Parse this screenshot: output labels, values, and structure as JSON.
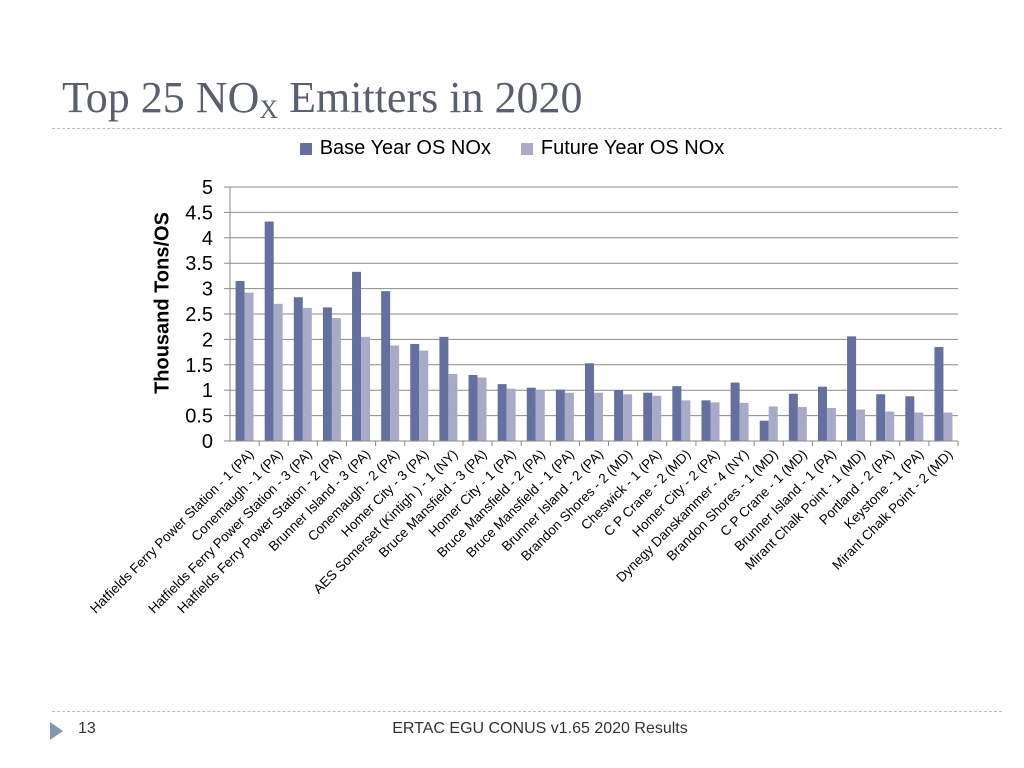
{
  "slide": {
    "title_main": "Top 25 NO",
    "title_sub": "X",
    "title_rest": " Emitters in 2020",
    "page_number": "13",
    "footer": "ERTAC EGU CONUS v1.65 2020 Results"
  },
  "colors": {
    "base": "#6470a0",
    "future": "#a7abc8",
    "grid": "#8a8a8a",
    "divider": "#b8bfcc"
  },
  "chart_data": {
    "type": "bar",
    "title": "",
    "xlabel": "",
    "ylabel": "Thousand Tons/OS",
    "ylim": [
      0,
      5
    ],
    "yticks": [
      "0",
      "0.5",
      "1",
      "1.5",
      "2",
      "2.5",
      "3",
      "3.5",
      "4",
      "4.5",
      "5"
    ],
    "grid": true,
    "legend_position": "top",
    "categories": [
      "Hatfields Ferry Power Station - 1 (PA)",
      "Conemaugh - 1 (PA)",
      "Hatfields Ferry Power Station - 3 (PA)",
      "Hatfields Ferry Power Station - 2 (PA)",
      "Brunner Island - 3 (PA)",
      "Conemaugh - 2 (PA)",
      "Homer City - 3 (PA)",
      "AES Somerset (Kintigh ) - 1 (NY)",
      "Bruce Mansfield - 3 (PA)",
      "Homer City - 1 (PA)",
      "Bruce Mansfield - 2 (PA)",
      "Bruce Mansfield - 1 (PA)",
      "Brunner Island - 2 (PA)",
      "Brandon Shores - 2 (MD)",
      "Cheswick - 1 (PA)",
      "C P Crane - 2 (MD)",
      "Homer City - 2 (PA)",
      "Dynegy Danskammer - 4 (NY)",
      "Brandon Shores - 1 (MD)",
      "C P Crane - 1 (MD)",
      "Brunner Island - 1 (PA)",
      "Mirant Chalk Point - 1 (MD)",
      "Portland - 2 (PA)",
      "Keystone - 1 (PA)",
      "Mirant Chalk Point - 2 (MD)"
    ],
    "series": [
      {
        "name": "Base Year OS NOx",
        "values": [
          3.15,
          4.32,
          2.83,
          2.63,
          3.33,
          2.95,
          1.91,
          2.05,
          1.3,
          1.12,
          1.05,
          1.01,
          1.53,
          1.0,
          0.95,
          1.08,
          0.8,
          1.15,
          0.4,
          0.93,
          1.07,
          2.06,
          0.92,
          0.88,
          1.85
        ]
      },
      {
        "name": "Future Year OS NOx",
        "values": [
          2.92,
          2.7,
          2.62,
          2.42,
          2.05,
          1.88,
          1.78,
          1.32,
          1.25,
          1.03,
          1.0,
          0.95,
          0.95,
          0.92,
          0.89,
          0.8,
          0.76,
          0.75,
          0.68,
          0.67,
          0.65,
          0.62,
          0.58,
          0.56,
          0.56
        ]
      }
    ]
  }
}
